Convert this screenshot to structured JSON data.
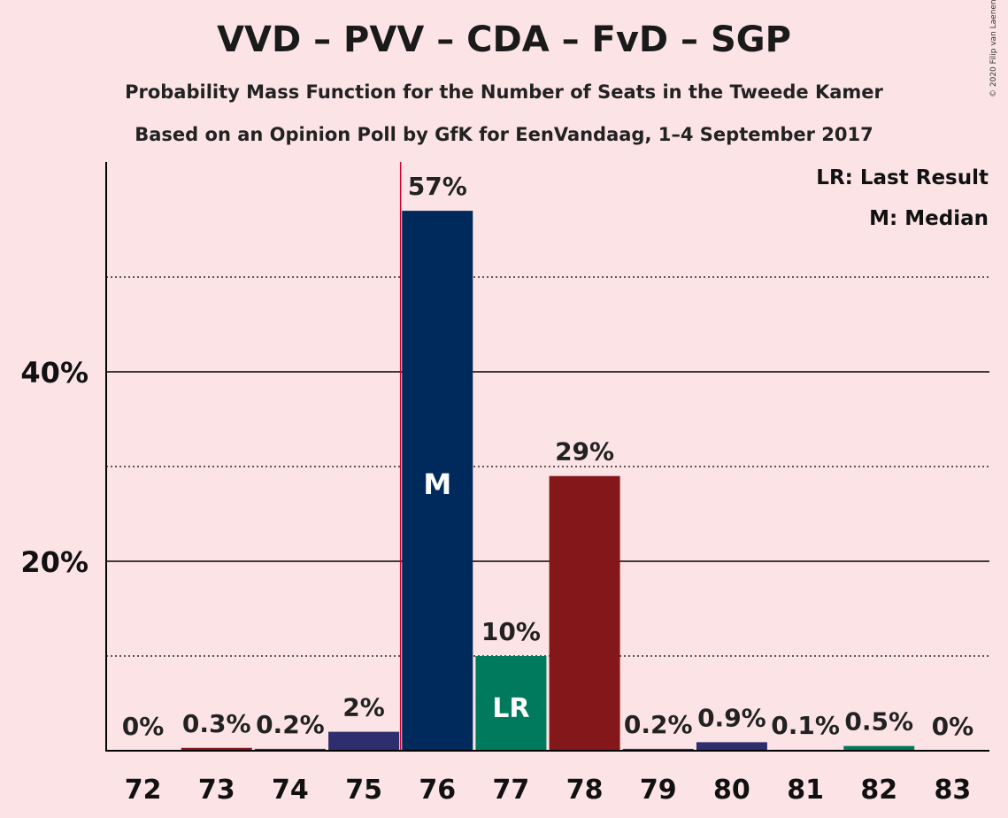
{
  "header": {
    "title": "VVD – PVV – CDA – FvD – SGP",
    "subtitle1": "Probability Mass Function for the Number of Seats in the Tweede Kamer",
    "subtitle2": "Based on an Opinion Poll by GfK for EenVandaag, 1–4 September 2017",
    "copyright": "© 2020 Filip van Laenen"
  },
  "legend": {
    "last_result": "LR: Last Result",
    "median": "M: Median"
  },
  "colors": {
    "background": "#FCE4E6",
    "navy": "#2E2D6E",
    "dark_blue": "#002A5C",
    "green": "#007A5C",
    "red": "#841719",
    "median_line": "#CC0033"
  },
  "chart_data": {
    "type": "bar",
    "categories": [
      "72",
      "73",
      "74",
      "75",
      "76",
      "77",
      "78",
      "79",
      "80",
      "81",
      "82",
      "83"
    ],
    "values": [
      0,
      0.3,
      0.2,
      2,
      57,
      10,
      29,
      0.2,
      0.9,
      0.1,
      0.5,
      0
    ],
    "value_labels": [
      "0%",
      "0.3%",
      "0.2%",
      "2%",
      "57%",
      "10%",
      "29%",
      "0.2%",
      "0.9%",
      "0.1%",
      "0.5%",
      "0%"
    ],
    "bar_colors": [
      "#2E2D6E",
      "#841719",
      "#2E2D6E",
      "#2E2D6E",
      "#002A5C",
      "#007A5C",
      "#841719",
      "#2E2D6E",
      "#2E2D6E",
      "#2E2D6E",
      "#007A5C",
      "#2E2D6E"
    ],
    "ylim": [
      0,
      62
    ],
    "y_ticks": [
      {
        "value": 20,
        "label": "20%"
      },
      {
        "value": 40,
        "label": "40%"
      }
    ],
    "minor_gridlines": [
      10,
      30,
      50
    ],
    "median": {
      "category": "76",
      "label": "M"
    },
    "last_result": {
      "category": "77",
      "label": "LR"
    },
    "median_line_at": 75.5
  }
}
